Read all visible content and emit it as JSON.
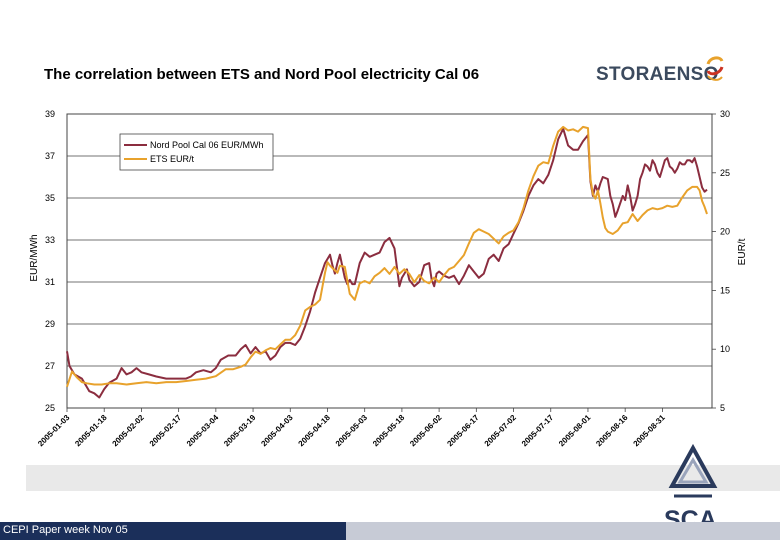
{
  "slide_title": "The correlation between ETS and Nord Pool electricity Cal 06",
  "logos": {
    "storaenso": "STORAENSO",
    "sca": "SCA"
  },
  "footer": {
    "text": "CEPI Paper week Nov 05"
  },
  "colors": {
    "nordpool": "#8b2d3f",
    "ets": "#e8a22c",
    "footer_bar": "#1b2f5a",
    "gray_band": "#e9e9e9"
  },
  "chart_data": {
    "type": "line",
    "title": "",
    "xlabel": "",
    "ylabel_left": "EUR/MWh",
    "ylabel_right": "EUR/t",
    "ylim_left": [
      25,
      39
    ],
    "ylim_right": [
      5,
      30
    ],
    "yticks_left": [
      "25",
      "27",
      "29",
      "31",
      "33",
      "35",
      "37",
      "39"
    ],
    "yticks_right": [
      "5",
      "10",
      "15",
      "20",
      "25",
      "30"
    ],
    "x_ticks": [
      "2005-01-03",
      "2005-01-18",
      "2005-02-02",
      "2005-02-17",
      "2005-03-04",
      "2005-03-19",
      "2005-04-03",
      "2005-04-18",
      "2005-05-03",
      "2005-05-18",
      "2005-06-02",
      "2005-06-17",
      "2005-07-02",
      "2005-07-17",
      "2005-08-01",
      "2005-08-16",
      "2005-08-31"
    ],
    "x_range_days": [
      0,
      260
    ],
    "legend": {
      "position": "top-left",
      "entries": [
        "Nord Pool Cal 06 EUR/MWh",
        "ETS EUR/t"
      ]
    },
    "series": [
      {
        "name": "Nord Pool Cal 06 EUR/MWh",
        "axis": "left",
        "points": [
          [
            0,
            27.7
          ],
          [
            1,
            27.0
          ],
          [
            3,
            26.6
          ],
          [
            6,
            26.4
          ],
          [
            9,
            25.8
          ],
          [
            11,
            25.7
          ],
          [
            13,
            25.5
          ],
          [
            15,
            25.9
          ],
          [
            17,
            26.2
          ],
          [
            20,
            26.4
          ],
          [
            22,
            26.9
          ],
          [
            24,
            26.6
          ],
          [
            26,
            26.7
          ],
          [
            28,
            26.9
          ],
          [
            30,
            26.7
          ],
          [
            33,
            26.6
          ],
          [
            36,
            26.5
          ],
          [
            40,
            26.4
          ],
          [
            44,
            26.4
          ],
          [
            48,
            26.4
          ],
          [
            50,
            26.5
          ],
          [
            52,
            26.7
          ],
          [
            55,
            26.8
          ],
          [
            58,
            26.7
          ],
          [
            60,
            26.9
          ],
          [
            62,
            27.3
          ],
          [
            65,
            27.5
          ],
          [
            68,
            27.5
          ],
          [
            70,
            27.8
          ],
          [
            72,
            28.0
          ],
          [
            74,
            27.6
          ],
          [
            76,
            27.9
          ],
          [
            78,
            27.6
          ],
          [
            80,
            27.7
          ],
          [
            82,
            27.3
          ],
          [
            84,
            27.5
          ],
          [
            86,
            27.9
          ],
          [
            88,
            28.1
          ],
          [
            90,
            28.1
          ],
          [
            92,
            28.0
          ],
          [
            94,
            28.3
          ],
          [
            96,
            28.9
          ],
          [
            98,
            29.6
          ],
          [
            100,
            30.5
          ],
          [
            102,
            31.2
          ],
          [
            104,
            31.9
          ],
          [
            106,
            32.3
          ],
          [
            107,
            31.8
          ],
          [
            108,
            31.4
          ],
          [
            109,
            31.9
          ],
          [
            110,
            32.3
          ],
          [
            112,
            31.2
          ],
          [
            113,
            30.9
          ],
          [
            114,
            31.1
          ],
          [
            115,
            30.9
          ],
          [
            116,
            30.9
          ],
          [
            118,
            31.9
          ],
          [
            120,
            32.4
          ],
          [
            122,
            32.2
          ],
          [
            124,
            32.3
          ],
          [
            126,
            32.4
          ],
          [
            128,
            32.9
          ],
          [
            130,
            33.1
          ],
          [
            132,
            32.6
          ],
          [
            133,
            31.7
          ],
          [
            134,
            30.8
          ],
          [
            135,
            31.2
          ],
          [
            136,
            31.4
          ],
          [
            137,
            31.6
          ],
          [
            138,
            31.1
          ],
          [
            140,
            30.8
          ],
          [
            142,
            31.0
          ],
          [
            144,
            31.8
          ],
          [
            146,
            31.9
          ],
          [
            147,
            31.1
          ],
          [
            148,
            30.8
          ],
          [
            149,
            31.4
          ],
          [
            150,
            31.5
          ],
          [
            152,
            31.3
          ],
          [
            154,
            31.2
          ],
          [
            156,
            31.3
          ],
          [
            158,
            30.9
          ],
          [
            160,
            31.3
          ],
          [
            162,
            31.8
          ],
          [
            164,
            31.5
          ],
          [
            166,
            31.2
          ],
          [
            168,
            31.4
          ],
          [
            170,
            32.1
          ],
          [
            172,
            32.3
          ],
          [
            174,
            32.0
          ],
          [
            176,
            32.6
          ],
          [
            178,
            32.8
          ],
          [
            180,
            33.3
          ],
          [
            182,
            33.8
          ],
          [
            184,
            34.4
          ],
          [
            186,
            35.1
          ],
          [
            188,
            35.6
          ],
          [
            190,
            35.9
          ],
          [
            192,
            35.7
          ],
          [
            194,
            36.1
          ],
          [
            196,
            36.8
          ],
          [
            198,
            37.8
          ],
          [
            200,
            38.3
          ],
          [
            202,
            37.5
          ],
          [
            204,
            37.3
          ],
          [
            206,
            37.3
          ],
          [
            208,
            37.7
          ],
          [
            210,
            38.0
          ],
          [
            211,
            35.8
          ],
          [
            212,
            35.1
          ],
          [
            213,
            35.6
          ],
          [
            214,
            35.3
          ],
          [
            215,
            35.7
          ],
          [
            216,
            36.0
          ],
          [
            218,
            35.9
          ],
          [
            219,
            35.1
          ],
          [
            220,
            34.7
          ],
          [
            221,
            34.1
          ],
          [
            222,
            34.4
          ],
          [
            224,
            35.1
          ],
          [
            225,
            34.9
          ],
          [
            226,
            35.6
          ],
          [
            227,
            35.1
          ],
          [
            228,
            34.4
          ],
          [
            229,
            34.7
          ],
          [
            230,
            35.1
          ],
          [
            231,
            35.9
          ],
          [
            232,
            36.2
          ],
          [
            233,
            36.6
          ],
          [
            234,
            36.5
          ],
          [
            235,
            36.3
          ],
          [
            236,
            36.8
          ],
          [
            237,
            36.6
          ],
          [
            238,
            36.2
          ],
          [
            239,
            36.0
          ],
          [
            240,
            36.4
          ],
          [
            241,
            36.8
          ],
          [
            242,
            36.9
          ],
          [
            243,
            36.5
          ],
          [
            244,
            36.4
          ],
          [
            245,
            36.2
          ],
          [
            246,
            36.4
          ],
          [
            247,
            36.7
          ],
          [
            248,
            36.6
          ],
          [
            249,
            36.6
          ],
          [
            250,
            36.8
          ],
          [
            251,
            36.8
          ],
          [
            252,
            36.7
          ],
          [
            253,
            36.9
          ],
          [
            254,
            36.5
          ],
          [
            255,
            36.0
          ],
          [
            256,
            35.5
          ],
          [
            257,
            35.3
          ],
          [
            258,
            35.4
          ]
        ]
      },
      {
        "name": "ETS EUR/t",
        "axis": "right",
        "points": [
          [
            0,
            6.8
          ],
          [
            2,
            8.1
          ],
          [
            4,
            7.6
          ],
          [
            6,
            7.2
          ],
          [
            8,
            7.1
          ],
          [
            11,
            7.0
          ],
          [
            14,
            7.0
          ],
          [
            17,
            7.1
          ],
          [
            20,
            7.1
          ],
          [
            24,
            7.0
          ],
          [
            28,
            7.1
          ],
          [
            32,
            7.2
          ],
          [
            36,
            7.1
          ],
          [
            40,
            7.2
          ],
          [
            44,
            7.2
          ],
          [
            48,
            7.3
          ],
          [
            52,
            7.4
          ],
          [
            56,
            7.5
          ],
          [
            60,
            7.7
          ],
          [
            62,
            8.0
          ],
          [
            64,
            8.3
          ],
          [
            67,
            8.3
          ],
          [
            70,
            8.5
          ],
          [
            72,
            8.7
          ],
          [
            74,
            9.3
          ],
          [
            76,
            9.8
          ],
          [
            78,
            9.6
          ],
          [
            80,
            9.9
          ],
          [
            82,
            10.1
          ],
          [
            84,
            10.0
          ],
          [
            86,
            10.4
          ],
          [
            88,
            10.8
          ],
          [
            90,
            10.8
          ],
          [
            92,
            11.2
          ],
          [
            94,
            12.0
          ],
          [
            96,
            13.3
          ],
          [
            98,
            13.6
          ],
          [
            100,
            13.8
          ],
          [
            102,
            14.2
          ],
          [
            104,
            16.5
          ],
          [
            105,
            17.4
          ],
          [
            106,
            17.1
          ],
          [
            108,
            16.7
          ],
          [
            109,
            16.5
          ],
          [
            110,
            17.1
          ],
          [
            112,
            17.0
          ],
          [
            114,
            14.7
          ],
          [
            116,
            14.2
          ],
          [
            118,
            15.6
          ],
          [
            120,
            15.8
          ],
          [
            122,
            15.6
          ],
          [
            124,
            16.2
          ],
          [
            126,
            16.5
          ],
          [
            128,
            16.9
          ],
          [
            130,
            16.4
          ],
          [
            132,
            17.0
          ],
          [
            134,
            16.4
          ],
          [
            136,
            16.8
          ],
          [
            138,
            16.4
          ],
          [
            140,
            15.7
          ],
          [
            142,
            16.3
          ],
          [
            144,
            15.8
          ],
          [
            146,
            15.6
          ],
          [
            148,
            16.1
          ],
          [
            150,
            15.7
          ],
          [
            152,
            16.3
          ],
          [
            154,
            16.8
          ],
          [
            156,
            17.0
          ],
          [
            158,
            17.5
          ],
          [
            160,
            18.0
          ],
          [
            162,
            19.0
          ],
          [
            164,
            19.9
          ],
          [
            166,
            20.2
          ],
          [
            168,
            20.0
          ],
          [
            170,
            19.8
          ],
          [
            172,
            19.4
          ],
          [
            174,
            19.0
          ],
          [
            176,
            19.6
          ],
          [
            178,
            19.9
          ],
          [
            180,
            20.1
          ],
          [
            182,
            20.8
          ],
          [
            184,
            22.0
          ],
          [
            186,
            23.5
          ],
          [
            188,
            24.7
          ],
          [
            190,
            25.6
          ],
          [
            192,
            25.9
          ],
          [
            194,
            25.8
          ],
          [
            196,
            27.3
          ],
          [
            198,
            28.5
          ],
          [
            200,
            28.9
          ],
          [
            202,
            28.6
          ],
          [
            204,
            28.7
          ],
          [
            206,
            28.5
          ],
          [
            208,
            28.9
          ],
          [
            210,
            28.8
          ],
          [
            211,
            24.5
          ],
          [
            212,
            23.2
          ],
          [
            213,
            22.8
          ],
          [
            214,
            23.5
          ],
          [
            215,
            22.4
          ],
          [
            216,
            21.2
          ],
          [
            217,
            20.3
          ],
          [
            218,
            20.0
          ],
          [
            220,
            19.8
          ],
          [
            222,
            20.1
          ],
          [
            224,
            20.7
          ],
          [
            226,
            20.8
          ],
          [
            228,
            21.5
          ],
          [
            230,
            20.9
          ],
          [
            232,
            21.4
          ],
          [
            234,
            21.8
          ],
          [
            236,
            22.0
          ],
          [
            238,
            21.9
          ],
          [
            240,
            22.0
          ],
          [
            242,
            22.2
          ],
          [
            244,
            22.1
          ],
          [
            246,
            22.2
          ],
          [
            248,
            22.9
          ],
          [
            250,
            23.5
          ],
          [
            252,
            23.8
          ],
          [
            254,
            23.8
          ],
          [
            255,
            23.5
          ],
          [
            256,
            22.6
          ],
          [
            257,
            22.1
          ],
          [
            258,
            21.5
          ]
        ]
      }
    ]
  }
}
